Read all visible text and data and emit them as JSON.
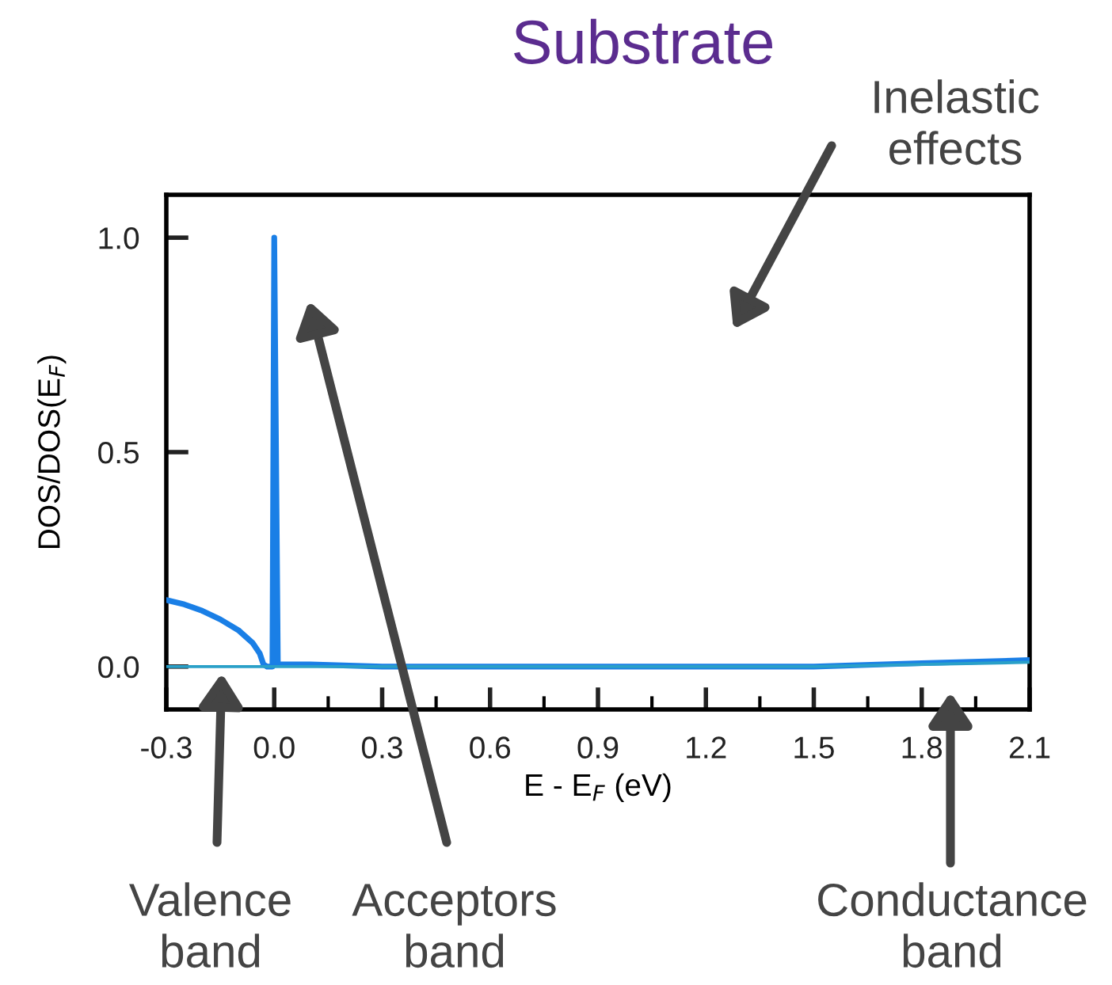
{
  "chart_data": {
    "type": "line",
    "title": "Substrate",
    "xlabel": "E - E$_{F}$ (eV)",
    "ylabel": "DOS/DOS(E$_{F}$)",
    "series": [
      {
        "color": "#1a7fe6",
        "x": [
          -0.3,
          -0.25,
          -0.2,
          -0.15,
          -0.1,
          -0.06,
          -0.04,
          -0.03,
          -0.02,
          -0.005,
          0.0,
          0.01,
          0.1,
          0.3,
          1.5,
          1.8,
          2.1
        ],
        "values": [
          0.155,
          0.145,
          0.13,
          0.11,
          0.085,
          0.055,
          0.03,
          0.005,
          0.0,
          0.0,
          1.0,
          0.005,
          0.005,
          0.0,
          0.0,
          0.008,
          0.015
        ]
      },
      {
        "color": "#2aa0c8",
        "x": [
          -0.3,
          0.0,
          1.5,
          2.1
        ],
        "values": [
          0.0,
          0.0,
          0.0,
          0.01
        ]
      }
    ],
    "xlim": [
      -0.3,
      2.1
    ],
    "ylim": [
      -0.1,
      1.1
    ],
    "xticks": [
      -0.3,
      {
        "value": 0,
        "label": "0.0"
      },
      0.3,
      0.6,
      0.9,
      1.2,
      1.5,
      1.8,
      2.1
    ],
    "yticks": [
      {
        "value": 0,
        "label": "0.0"
      },
      0.5,
      {
        "value": 1,
        "label": "1.0"
      }
    ],
    "grid": false,
    "legend": false,
    "marker": "none",
    "line_style": "solid",
    "annotations": [
      "Inelastic\neffects",
      "Valence\nband",
      "Acceptors\nband",
      "Conductance\nband"
    ]
  }
}
